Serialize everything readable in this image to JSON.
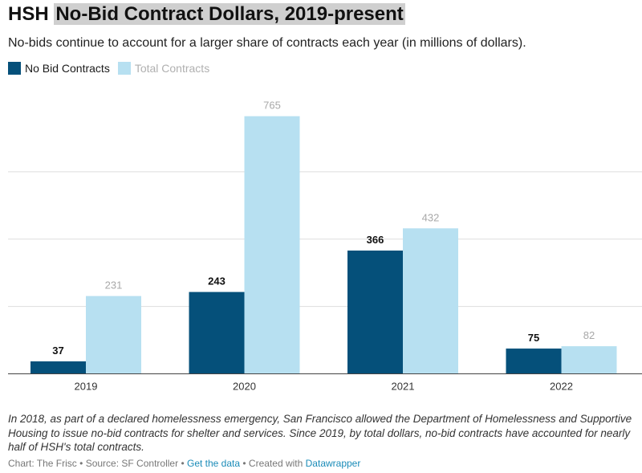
{
  "header": {
    "title_prefix": "HSH",
    "title_highlight": "No-Bid Contract Dollars, 2019-present",
    "subtitle": "No-bids continue to account for a larger share of contracts each year (in millions of dollars)."
  },
  "colors": {
    "no_bid": "#05507a",
    "total": "#b7e0f1",
    "gridline": "#dddddd",
    "baseline": "#444444",
    "label_no_bid": "#111111",
    "label_total": "#a8a8a8"
  },
  "chart_data": {
    "type": "bar",
    "categories": [
      "2019",
      "2020",
      "2021",
      "2022"
    ],
    "series": [
      {
        "name": "No Bid Contracts",
        "values": [
          37,
          243,
          366,
          75
        ]
      },
      {
        "name": "Total Contracts",
        "values": [
          231,
          765,
          432,
          82
        ]
      }
    ],
    "ylim": [
      0,
      800
    ],
    "gridlines": [
      200,
      400,
      600
    ],
    "legend_position": "top-left"
  },
  "notes": "In 2018, as part of a declared homelessness emergency, San Francisco allowed the Department of Homelessness and Supportive Housing to issue no-bid contracts for shelter and services. Since 2019, by total dollars, no-bid contracts have accounted for nearly half of HSH's total contracts.",
  "footer": {
    "chart_credit": "Chart: The Frisc",
    "source": "Source: SF Controller",
    "get_data": "Get the data",
    "created_with": "Created with",
    "tool": "Datawrapper",
    "sep": "•"
  }
}
